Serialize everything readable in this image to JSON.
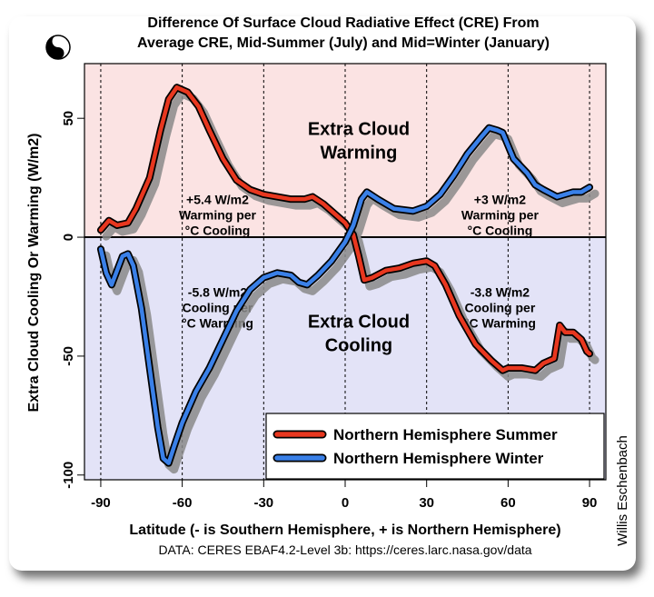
{
  "chart_data": {
    "type": "line",
    "title": [
      "Difference Of Surface Cloud Radiative Effect (CRE) From",
      "Average CRE, Mid-Summer (July) and Mid=Winter (January)"
    ],
    "xlabel": "Latitude (- is Southern Hemisphere, + is Northern Hemisphere)",
    "ylabel": "Extra Cloud Cooling Or Warming (W/m2)",
    "xlim": [
      -96,
      96
    ],
    "ylim": [
      -102,
      73
    ],
    "xticks": [
      -90,
      -60,
      -30,
      0,
      30,
      60,
      90
    ],
    "yticks": [
      -100,
      -50,
      0,
      50
    ],
    "vgrid": [
      -90,
      -60,
      -30,
      0,
      30,
      60,
      90
    ],
    "caption": "DATA: CERES EBAF4.2-Level 3b: https://ceres.larc.nasa.gov/data",
    "credit": "Willis Eschenbach",
    "legend_position": "bottom-right",
    "region_labels": {
      "warming": [
        "Extra Cloud",
        "Warming"
      ],
      "cooling": [
        "Extra Cloud",
        "Cooling"
      ]
    },
    "annotations": [
      {
        "lines": [
          "+5.4 W/m2",
          "Warming per",
          "°C Cooling"
        ],
        "x": -47,
        "y": 14
      },
      {
        "lines": [
          "-5.8 W/m2",
          "Cooling per",
          "°C Warming"
        ],
        "x": -47,
        "y": -25
      },
      {
        "lines": [
          "+3 W/m2",
          "Warming per",
          "°C Cooling"
        ],
        "x": 57,
        "y": 14
      },
      {
        "lines": [
          "-3.8 W/m2",
          "Cooling per",
          "°C Warming"
        ],
        "x": 57,
        "y": -25
      }
    ],
    "colors": {
      "warm_bg": "#fbe3e3",
      "cool_bg": "#e3e3f7",
      "shadow": "#8a8a8a"
    },
    "series": [
      {
        "name": "Northern Hemisphere Summer",
        "color": "#e8371f",
        "x": [
          -90,
          -87,
          -84,
          -80,
          -77,
          -72,
          -68,
          -65,
          -62,
          -58,
          -54,
          -50,
          -45,
          -40,
          -35,
          -30,
          -25,
          -20,
          -15,
          -12,
          -8,
          -4,
          0,
          3,
          5,
          7,
          10,
          15,
          20,
          25,
          30,
          33,
          37,
          42,
          48,
          54,
          58,
          60,
          65,
          70,
          73,
          77,
          79,
          81,
          84,
          87,
          89,
          90
        ],
        "y": [
          3,
          7,
          5,
          6,
          12,
          25,
          45,
          58,
          63,
          61,
          55,
          45,
          33,
          24,
          20,
          18,
          17,
          16,
          16,
          17,
          14,
          10,
          6,
          1,
          -8,
          -18,
          -17,
          -14,
          -13,
          -11,
          -10,
          -12,
          -20,
          -33,
          -45,
          -52,
          -56,
          -55,
          -55,
          -56,
          -53,
          -51,
          -37,
          -40,
          -40,
          -43,
          -48,
          -49
        ]
      },
      {
        "name": "Northern Hemisphere Winter",
        "color": "#3a80e8",
        "x": [
          -90,
          -88,
          -86,
          -84,
          -82,
          -80,
          -78,
          -75,
          -72,
          -69,
          -67,
          -65,
          -63,
          -60,
          -55,
          -50,
          -45,
          -40,
          -35,
          -30,
          -25,
          -20,
          -17,
          -14,
          -10,
          -5,
          0,
          3,
          6,
          8,
          12,
          18,
          25,
          30,
          35,
          40,
          45,
          50,
          53,
          56,
          58,
          62,
          67,
          70,
          73,
          78,
          81,
          84,
          87,
          90
        ],
        "y": [
          -5,
          -15,
          -20,
          -14,
          -8,
          -7,
          -12,
          -30,
          -55,
          -80,
          -93,
          -95,
          -88,
          -78,
          -65,
          -55,
          -43,
          -31,
          -22,
          -17,
          -15,
          -16,
          -19,
          -20,
          -16,
          -10,
          -2,
          5,
          16,
          19,
          16,
          12,
          11,
          13,
          18,
          26,
          35,
          42,
          46,
          45,
          44,
          33,
          27,
          22,
          20,
          17,
          18,
          19,
          19,
          21
        ]
      }
    ]
  }
}
